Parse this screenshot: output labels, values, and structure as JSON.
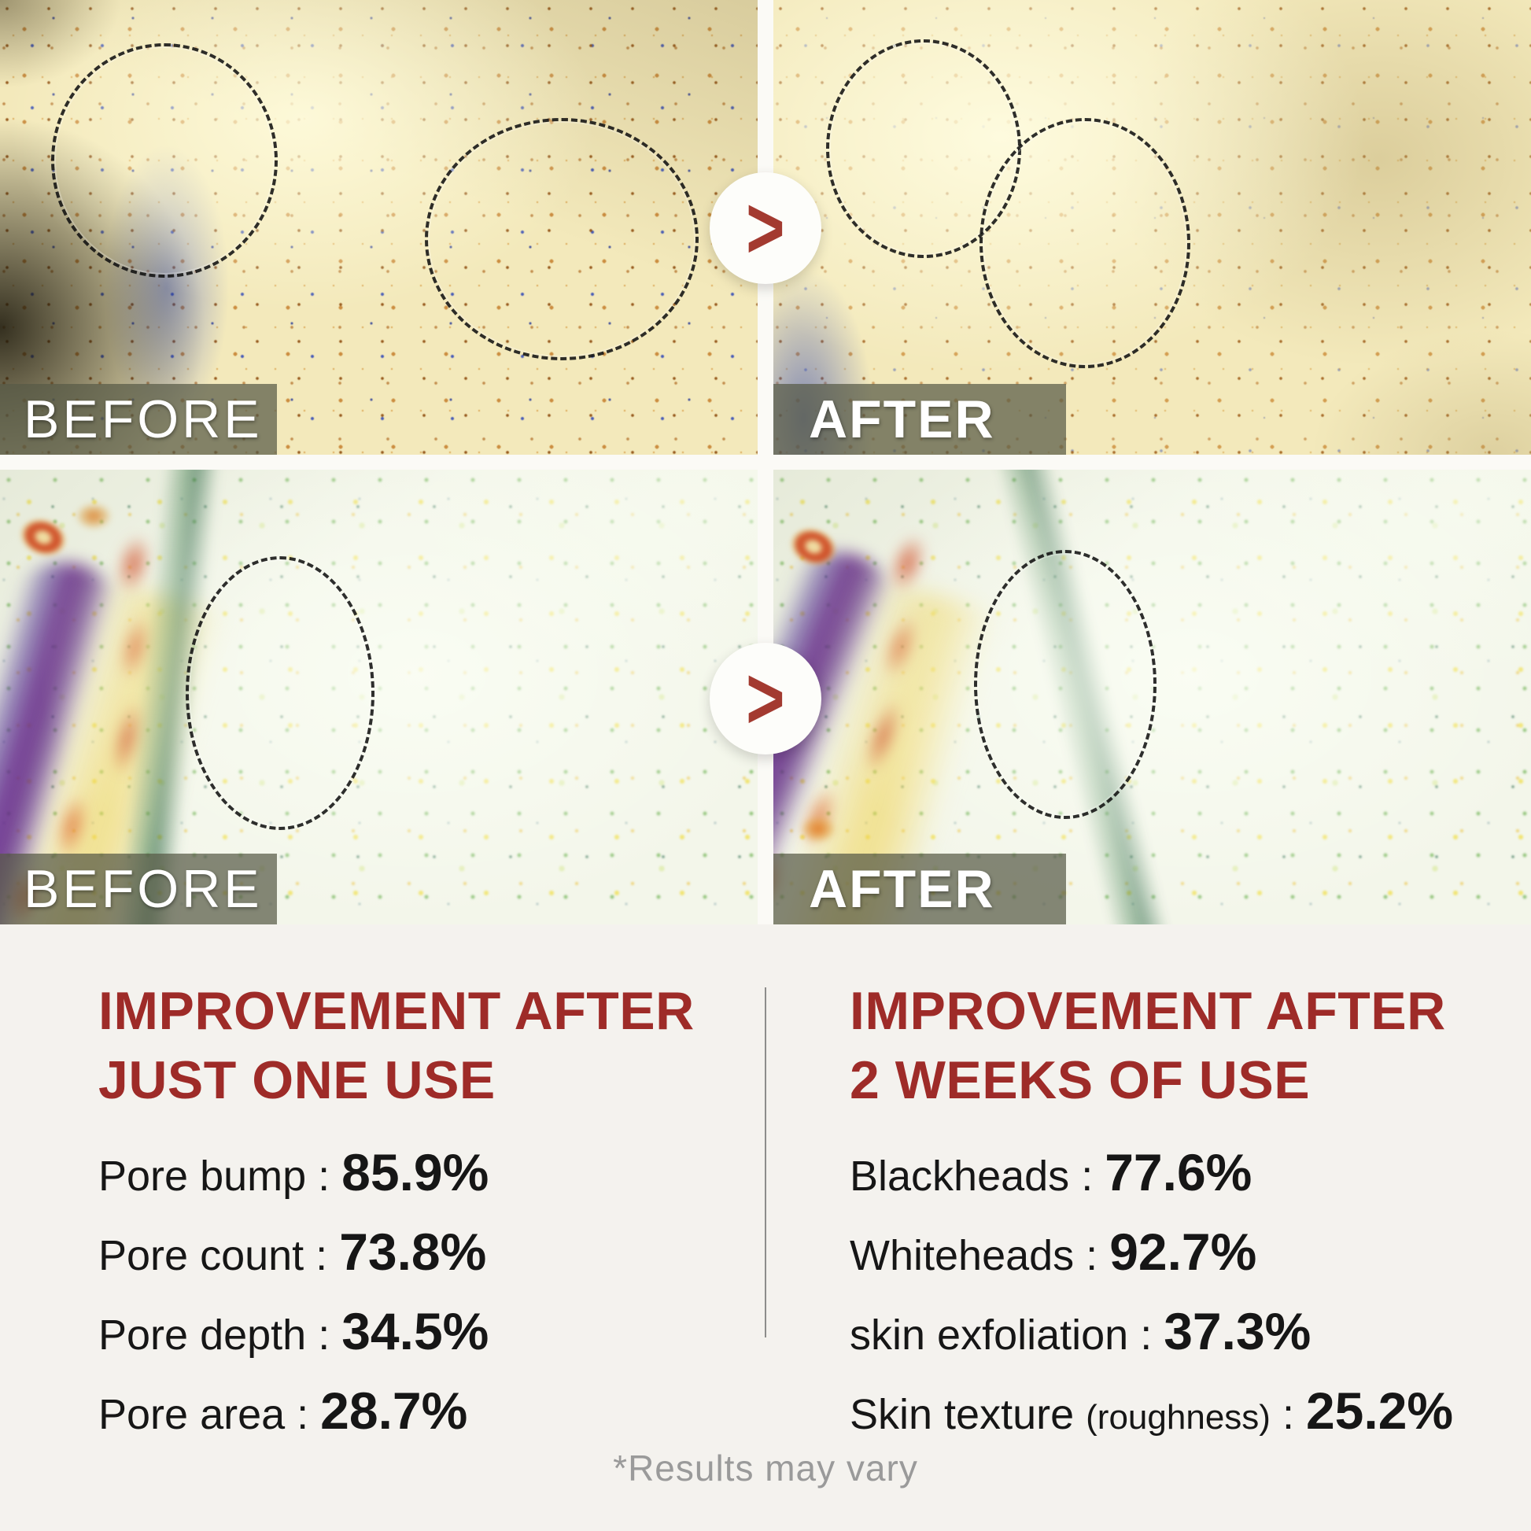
{
  "comparisons": [
    {
      "before_label": "BEFORE",
      "after_label": "AFTER",
      "arrow": ">"
    },
    {
      "before_label": "BEFORE",
      "after_label": "AFTER",
      "arrow": ">"
    }
  ],
  "results": {
    "separator": " : ",
    "left": {
      "title_line1": "IMPROVEMENT AFTER",
      "title_line2": "JUST ONE USE",
      "stats": [
        {
          "label": "Pore bump",
          "value": "85.9%"
        },
        {
          "label": "Pore count",
          "value": "73.8%"
        },
        {
          "label": "Pore depth",
          "value": "34.5%"
        },
        {
          "label": "Pore area",
          "value": "28.7%"
        }
      ]
    },
    "right": {
      "title_line1": "IMPROVEMENT AFTER",
      "title_line2": "2 WEEKS OF USE",
      "stats": [
        {
          "label": "Blackheads",
          "value": "77.6%"
        },
        {
          "label": "Whiteheads",
          "value": "92.7%"
        },
        {
          "label": "skin exfoliation",
          "value": "37.3%"
        },
        {
          "label": "Skin texture",
          "note": "(roughness)",
          "value": "25.2%"
        }
      ]
    }
  },
  "disclaimer": "*Results may vary",
  "colors": {
    "accent_red": "#9e2b28",
    "arrow_red": "#a33a30",
    "label_overlay": "rgba(88,90,70,0.72)",
    "text_black": "#161616",
    "muted_gray": "#9a9a9a",
    "panel_bg": "#f4f2ee"
  }
}
